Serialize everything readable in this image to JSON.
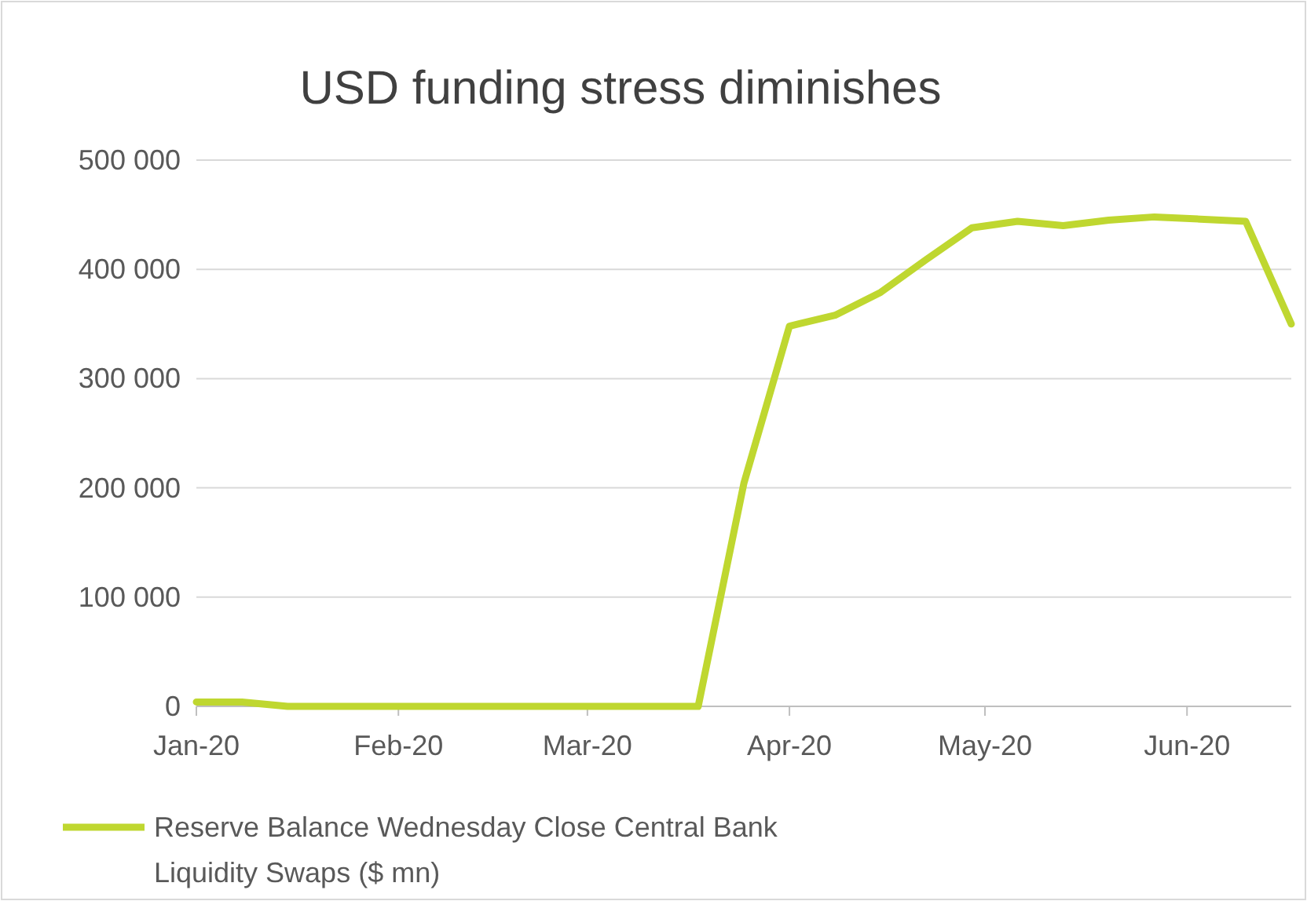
{
  "chart_data": {
    "type": "line",
    "title": "USD funding stress diminishes",
    "x": [
      "2020-01-01",
      "2020-01-08",
      "2020-01-15",
      "2020-01-22",
      "2020-01-29",
      "2020-02-05",
      "2020-02-12",
      "2020-02-19",
      "2020-02-26",
      "2020-03-04",
      "2020-03-11",
      "2020-03-18",
      "2020-03-25",
      "2020-04-01",
      "2020-04-08",
      "2020-04-15",
      "2020-04-22",
      "2020-04-29",
      "2020-05-06",
      "2020-05-13",
      "2020-05-20",
      "2020-05-27",
      "2020-06-03",
      "2020-06-10",
      "2020-06-17"
    ],
    "series": [
      {
        "name": "Reserve Balance Wednesday Close Central Bank Liquidity Swaps ($ mn)",
        "color": "#bfd730",
        "values": [
          4000,
          4000,
          0,
          0,
          0,
          0,
          0,
          0,
          0,
          0,
          0,
          0,
          204000,
          348000,
          358000,
          379000,
          409000,
          438000,
          444000,
          440000,
          445000,
          448000,
          446000,
          444000,
          350000
        ]
      }
    ],
    "xlim": [
      "2020-01-01",
      "2020-06-17"
    ],
    "xticks": [
      {
        "value": "2020-01-01",
        "label": "Jan-20"
      },
      {
        "value": "2020-02-01",
        "label": "Feb-20"
      },
      {
        "value": "2020-03-01",
        "label": "Mar-20"
      },
      {
        "value": "2020-04-01",
        "label": "Apr-20"
      },
      {
        "value": "2020-05-01",
        "label": "May-20"
      },
      {
        "value": "2020-06-01",
        "label": "Jun-20"
      }
    ],
    "ylim": [
      0,
      500000
    ],
    "yticks": [
      {
        "value": 0,
        "label": "0"
      },
      {
        "value": 100000,
        "label": "100 000"
      },
      {
        "value": 200000,
        "label": "200 000"
      },
      {
        "value": 300000,
        "label": "300 000"
      },
      {
        "value": 400000,
        "label": "400 000"
      },
      {
        "value": 500000,
        "label": "500 000"
      }
    ],
    "grid": "y",
    "legend": "bottom left",
    "marker": "none",
    "line_style": "solid"
  }
}
